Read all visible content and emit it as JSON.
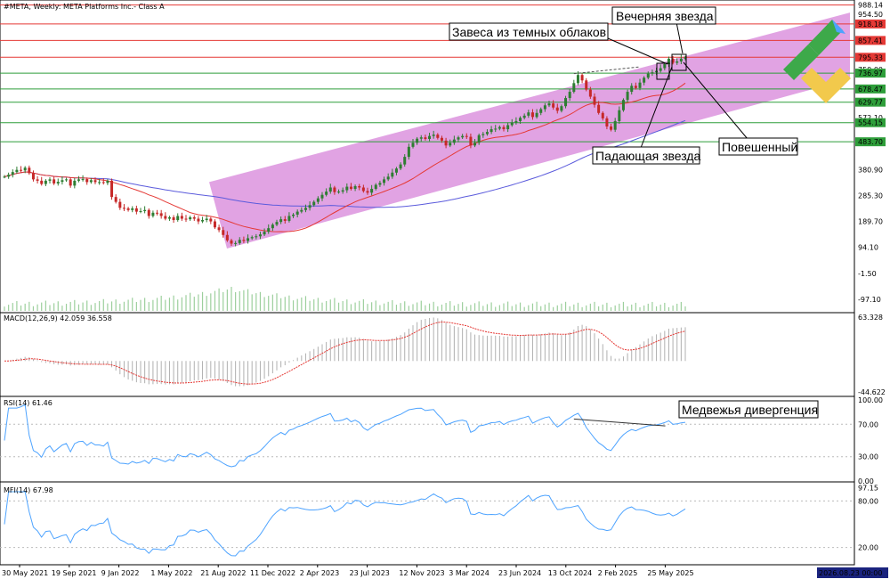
{
  "chart_data": {
    "type": "candlestick",
    "header": "#META, Weekly:  META Platforms Inc.- Class A",
    "price_panel": {
      "ylim": [
        -140,
        1000
      ],
      "y_ticks": [
        954.5,
        380.9,
        285.3,
        189.7,
        94.1,
        -1.5,
        -97.1
      ],
      "partial_ticks": [
        "750.00",
        "572.10"
      ],
      "levels": [
        {
          "value": 988.14,
          "label": "988.14",
          "color": "#e53935",
          "badge": false
        },
        {
          "value": 918.18,
          "label": "918.18",
          "color": "#e53935",
          "badge": true
        },
        {
          "value": 857.41,
          "label": "857.41",
          "color": "#e53935",
          "badge": true
        },
        {
          "value": 795.33,
          "label": "795.33",
          "color": "#e53935",
          "badge": true
        },
        {
          "value": 736.97,
          "label": "736.97",
          "color": "#2e9e3a",
          "badge": true
        },
        {
          "value": 678.47,
          "label": "678.47",
          "color": "#2e9e3a",
          "badge": true
        },
        {
          "value": 629.77,
          "label": "629.77",
          "color": "#2e9e3a",
          "badge": true
        },
        {
          "value": 554.15,
          "label": "554.15",
          "color": "#2e9e3a",
          "badge": true
        },
        {
          "value": 483.7,
          "label": "483.70",
          "color": "#2e9e3a",
          "badge": true
        }
      ],
      "channel": {
        "color": "#d784d9",
        "lower_start": 90,
        "lower_end": 670,
        "upper_start": 335,
        "upper_end": 960
      },
      "close_series": [
        355,
        362,
        372,
        380,
        378,
        388,
        368,
        345,
        340,
        328,
        340,
        345,
        330,
        336,
        342,
        345,
        322,
        340,
        345,
        346,
        335,
        342,
        335,
        335,
        332,
        340,
        280,
        262,
        240,
        238,
        232,
        238,
        226,
        228,
        232,
        210,
        222,
        220,
        210,
        200,
        205,
        195,
        210,
        200,
        198,
        205,
        200,
        190,
        195,
        200,
        190,
        168,
        158,
        140,
        120,
        108,
        110,
        122,
        118,
        128,
        132,
        135,
        142,
        152,
        165,
        178,
        188,
        198,
        192,
        210,
        215,
        226,
        232,
        240,
        250,
        262,
        275,
        288,
        300,
        315,
        298,
        300,
        305,
        318,
        310,
        320,
        315,
        302,
        296,
        310,
        325,
        332,
        345,
        355,
        370,
        385,
        400,
        428,
        465,
        480,
        495,
        500,
        494,
        505,
        510,
        498,
        488,
        470,
        480,
        492,
        500,
        505,
        502,
        470,
        480,
        508,
        512,
        520,
        530,
        532,
        538,
        530,
        545,
        555,
        560,
        572,
        580,
        592,
        575,
        590,
        604,
        618,
        625,
        610,
        598,
        615,
        645,
        668,
        700,
        730,
        710,
        676,
        650,
        620,
        590,
        570,
        540,
        528,
        560,
        600,
        638,
        668,
        690,
        682,
        702,
        720,
        735,
        740,
        745,
        755,
        770,
        790,
        775,
        780,
        790,
        795
      ],
      "volume_peak_index": 55,
      "ma_red": {
        "name": "",
        "color": "#e53935"
      },
      "ma_blue": {
        "name": "",
        "color": "#5b5bdc"
      }
    },
    "macd_panel": {
      "label": "MACD(12,26,9) 42.059 36.558",
      "ylim": [
        -44.622,
        63.328
      ],
      "ticks": [
        63.328,
        -44.622
      ],
      "signal_color": "#e53935",
      "hist_color": "#b0b0b0"
    },
    "rsi_panel": {
      "label": "RSI(14) 61.46",
      "ylim": [
        0,
        100
      ],
      "ticks": [
        100.0,
        70.0,
        30.0,
        0.0
      ],
      "color": "#4da3ff",
      "divergence_line": {
        "from_index": 138,
        "from_value": 76.5,
        "to_index": 158,
        "to_value": 68.0
      }
    },
    "mfi_panel": {
      "label": "MFI(14) 67.98",
      "ylim": [
        0,
        100
      ],
      "ticks": [
        97.15,
        80.0,
        20.0
      ],
      "color": "#4da3ff"
    },
    "x_axis": {
      "labels": [
        "30 May 2021",
        "19 Sep 2021",
        "9 Jan 2022",
        "1 May 2022",
        "21 Aug 2022",
        "11 Dec 2022",
        "2 Apr 2023",
        "23 Jul 2023",
        "12 Nov 2023",
        "3 Mar 2024",
        "23 Jun 2024",
        "13 Oct 2024",
        "2 Feb 2025",
        "25 May 2025"
      ],
      "end_badge": "2026.08.23 00:00"
    },
    "annotations": {
      "evening_star": "Вечерняя звезда",
      "dark_cloud": "Завеса из темных облаков",
      "hanging_man": "Повешенный",
      "shooting_star": "Падающая звезда",
      "bearish_divergence": "Медвежья дивергенция"
    },
    "colors": {
      "bull": "#2e7d32",
      "bear": "#c62828",
      "logo_green": "#3da94a",
      "logo_yellow": "#f2c94c"
    }
  }
}
